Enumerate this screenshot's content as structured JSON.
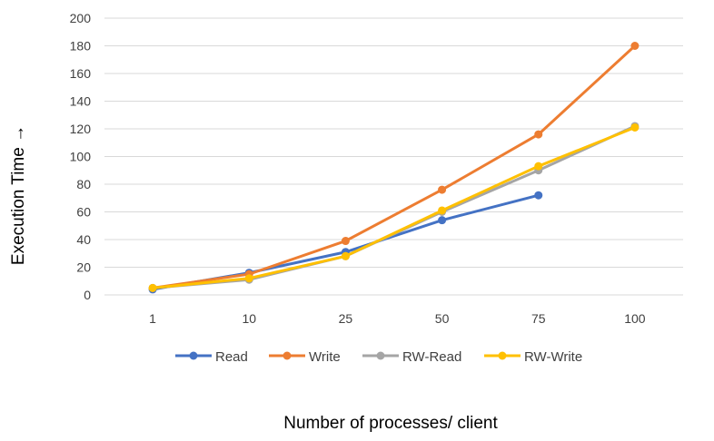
{
  "chart_data": {
    "type": "line",
    "title": "",
    "xlabel": "Number of processes/ client",
    "ylabel": "Execution Time →",
    "categories": [
      "1",
      "10",
      "25",
      "50",
      "75",
      "100"
    ],
    "ylim": [
      0,
      200
    ],
    "yticks": [
      0,
      20,
      40,
      60,
      80,
      100,
      120,
      140,
      160,
      180,
      200
    ],
    "grid": true,
    "legend_position": "bottom",
    "series": [
      {
        "name": "Read",
        "color": "#4472C4",
        "values": [
          4,
          16,
          31,
          54,
          72,
          null
        ]
      },
      {
        "name": "Write",
        "color": "#ED7D31",
        "values": [
          5,
          15,
          39,
          76,
          116,
          180
        ]
      },
      {
        "name": "RW-Read",
        "color": "#A5A5A5",
        "values": [
          5,
          11,
          28,
          60,
          90,
          122
        ]
      },
      {
        "name": "RW-Write",
        "color": "#FFC000",
        "values": [
          5,
          12,
          28,
          61,
          93,
          121
        ]
      }
    ]
  }
}
